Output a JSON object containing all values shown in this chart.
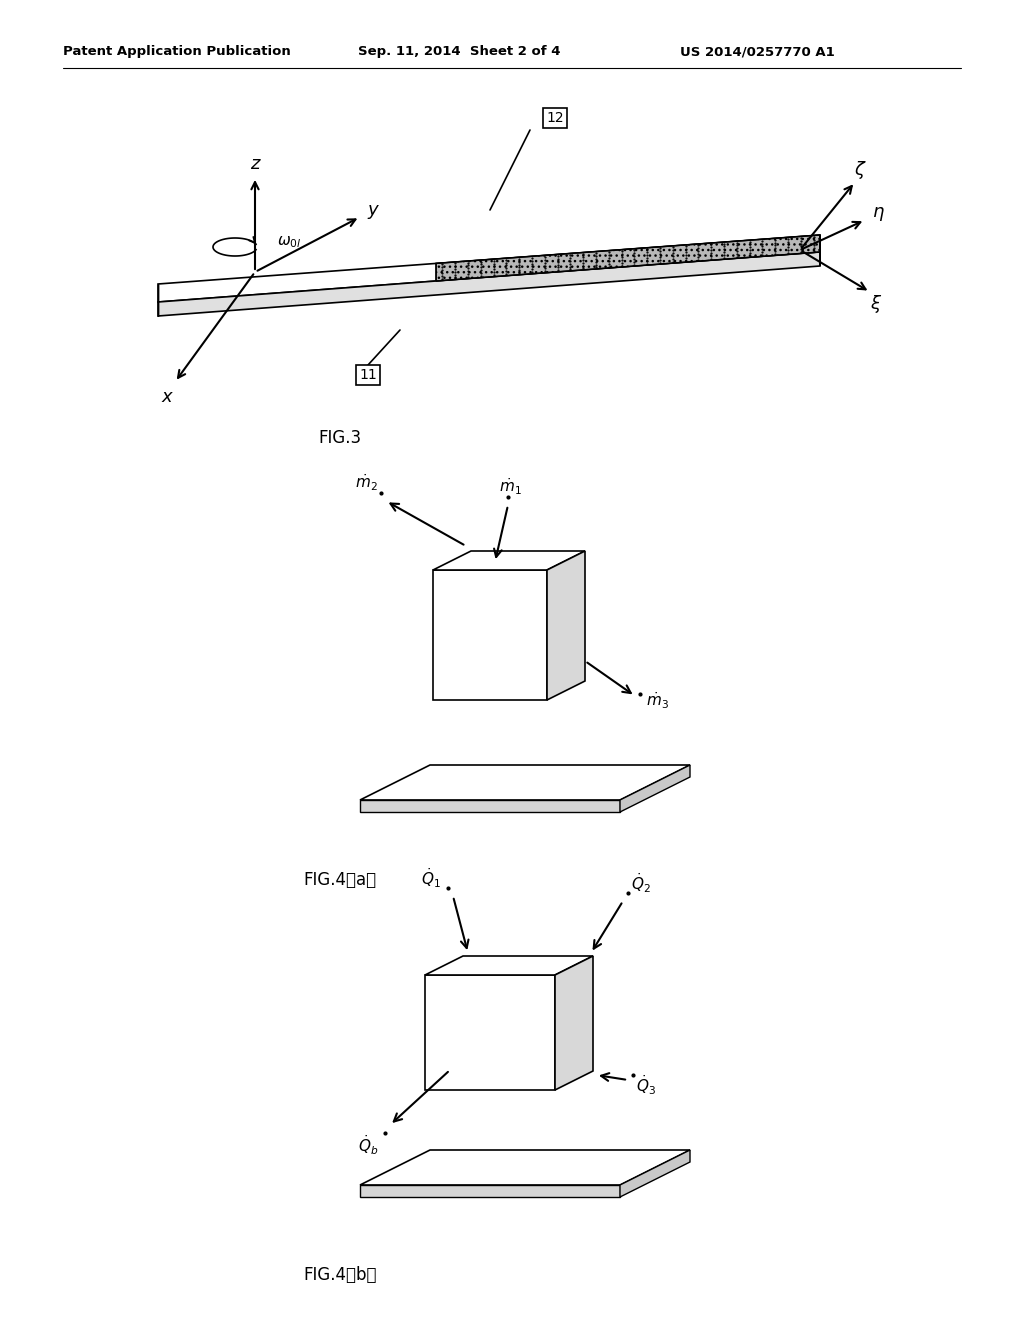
{
  "bg_color": "#ffffff",
  "header_left": "Patent Application Publication",
  "header_mid": "Sep. 11, 2014  Sheet 2 of 4",
  "header_right": "US 2014/0257770 A1",
  "fig3_caption": "FIG.3",
  "fig4a_caption": "FIG.4（a）",
  "fig4b_caption": "FIG.4（b）"
}
